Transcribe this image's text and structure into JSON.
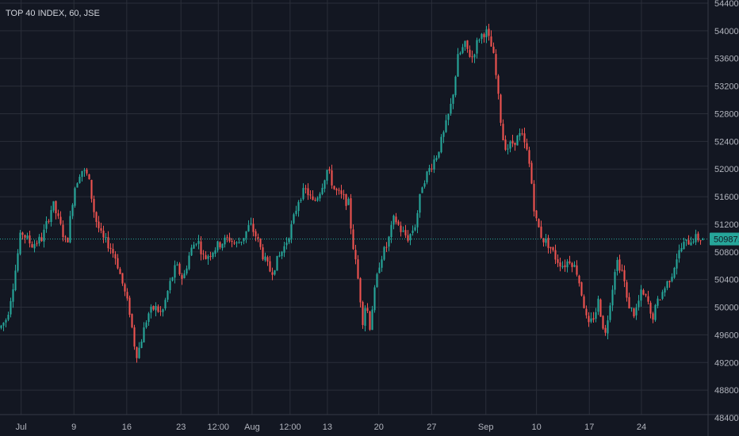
{
  "header": {
    "title": "TOP 40 INDEX, 60, JSE"
  },
  "colors": {
    "background": "#131722",
    "grid": "#2a2e39",
    "up": "#26a69a",
    "down": "#ef5350",
    "axis_text": "#b2b5be",
    "last_price_bg": "#26a69a"
  },
  "chart_data": {
    "type": "candlestick",
    "title": "TOP 40 INDEX, 60, JSE",
    "ylim": [
      48400,
      54400
    ],
    "y_ticks": [
      "48400.00",
      "48800.00",
      "49200.00",
      "49600.00",
      "50000.00",
      "50400.00",
      "50800.00",
      "51200.00",
      "51600.00",
      "52000.00",
      "52400.00",
      "52800.00",
      "53200.00",
      "53600.00",
      "54000.00",
      "54400.00"
    ],
    "x_ticks": [
      {
        "label": "Jul",
        "at": 0.03
      },
      {
        "label": "9",
        "at": 0.105
      },
      {
        "label": "16",
        "at": 0.18
      },
      {
        "label": "23",
        "at": 0.257
      },
      {
        "label": "12:00",
        "at": 0.31
      },
      {
        "label": "Aug",
        "at": 0.358
      },
      {
        "label": "12:00",
        "at": 0.412
      },
      {
        "label": "13",
        "at": 0.465
      },
      {
        "label": "20",
        "at": 0.538
      },
      {
        "label": "27",
        "at": 0.613
      },
      {
        "label": "Sep",
        "at": 0.69
      },
      {
        "label": "10",
        "at": 0.762
      },
      {
        "label": "17",
        "at": 0.837
      },
      {
        "label": "24",
        "at": 0.911
      }
    ],
    "last_price": "50987.15",
    "last_value": 50987.15,
    "path": [
      [
        0.0,
        49700
      ],
      [
        0.01,
        49850
      ],
      [
        0.02,
        50400
      ],
      [
        0.03,
        51100
      ],
      [
        0.045,
        50900
      ],
      [
        0.06,
        51000
      ],
      [
        0.075,
        51500
      ],
      [
        0.085,
        51200
      ],
      [
        0.095,
        50900
      ],
      [
        0.105,
        51700
      ],
      [
        0.115,
        52000
      ],
      [
        0.125,
        51900
      ],
      [
        0.135,
        51300
      ],
      [
        0.145,
        51000
      ],
      [
        0.155,
        50900
      ],
      [
        0.165,
        50700
      ],
      [
        0.175,
        50300
      ],
      [
        0.185,
        49900
      ],
      [
        0.19,
        49500
      ],
      [
        0.195,
        49300
      ],
      [
        0.2,
        49500
      ],
      [
        0.21,
        49900
      ],
      [
        0.22,
        50000
      ],
      [
        0.23,
        49900
      ],
      [
        0.24,
        50300
      ],
      [
        0.25,
        50600
      ],
      [
        0.26,
        50400
      ],
      [
        0.27,
        50800
      ],
      [
        0.28,
        51000
      ],
      [
        0.29,
        50700
      ],
      [
        0.3,
        50800
      ],
      [
        0.31,
        50900
      ],
      [
        0.325,
        51000
      ],
      [
        0.335,
        50900
      ],
      [
        0.345,
        51000
      ],
      [
        0.355,
        51200
      ],
      [
        0.365,
        51000
      ],
      [
        0.375,
        50700
      ],
      [
        0.385,
        50500
      ],
      [
        0.395,
        50700
      ],
      [
        0.405,
        50900
      ],
      [
        0.415,
        51200
      ],
      [
        0.425,
        51600
      ],
      [
        0.435,
        51700
      ],
      [
        0.445,
        51500
      ],
      [
        0.455,
        51700
      ],
      [
        0.465,
        52000
      ],
      [
        0.475,
        51700
      ],
      [
        0.485,
        51600
      ],
      [
        0.495,
        51500
      ],
      [
        0.5,
        51000
      ],
      [
        0.51,
        50300
      ],
      [
        0.515,
        49800
      ],
      [
        0.52,
        50100
      ],
      [
        0.525,
        49700
      ],
      [
        0.53,
        50100
      ],
      [
        0.535,
        50400
      ],
      [
        0.54,
        50700
      ],
      [
        0.55,
        50900
      ],
      [
        0.56,
        51300
      ],
      [
        0.57,
        51100
      ],
      [
        0.58,
        51000
      ],
      [
        0.59,
        51200
      ],
      [
        0.6,
        51800
      ],
      [
        0.61,
        52000
      ],
      [
        0.62,
        52200
      ],
      [
        0.63,
        52500
      ],
      [
        0.64,
        52900
      ],
      [
        0.645,
        53200
      ],
      [
        0.65,
        53600
      ],
      [
        0.66,
        53800
      ],
      [
        0.67,
        53600
      ],
      [
        0.68,
        53900
      ],
      [
        0.69,
        54000
      ],
      [
        0.7,
        53700
      ],
      [
        0.705,
        53300
      ],
      [
        0.71,
        52800
      ],
      [
        0.715,
        52400
      ],
      [
        0.72,
        52300
      ],
      [
        0.73,
        52400
      ],
      [
        0.74,
        52500
      ],
      [
        0.75,
        52200
      ],
      [
        0.755,
        51800
      ],
      [
        0.76,
        51300
      ],
      [
        0.77,
        51000
      ],
      [
        0.78,
        50900
      ],
      [
        0.79,
        50700
      ],
      [
        0.8,
        50600
      ],
      [
        0.81,
        50700
      ],
      [
        0.82,
        50500
      ],
      [
        0.83,
        50000
      ],
      [
        0.835,
        49700
      ],
      [
        0.84,
        49800
      ],
      [
        0.845,
        49900
      ],
      [
        0.85,
        50100
      ],
      [
        0.855,
        49800
      ],
      [
        0.86,
        49600
      ],
      [
        0.865,
        50000
      ],
      [
        0.87,
        50300
      ],
      [
        0.875,
        50700
      ],
      [
        0.885,
        50500
      ],
      [
        0.89,
        50100
      ],
      [
        0.9,
        49900
      ],
      [
        0.905,
        50000
      ],
      [
        0.91,
        50200
      ],
      [
        0.92,
        50100
      ],
      [
        0.925,
        49800
      ],
      [
        0.935,
        50100
      ],
      [
        0.945,
        50300
      ],
      [
        0.955,
        50500
      ],
      [
        0.96,
        50700
      ],
      [
        0.97,
        50900
      ],
      [
        0.985,
        51000
      ],
      [
        1.0,
        50990
      ]
    ]
  }
}
